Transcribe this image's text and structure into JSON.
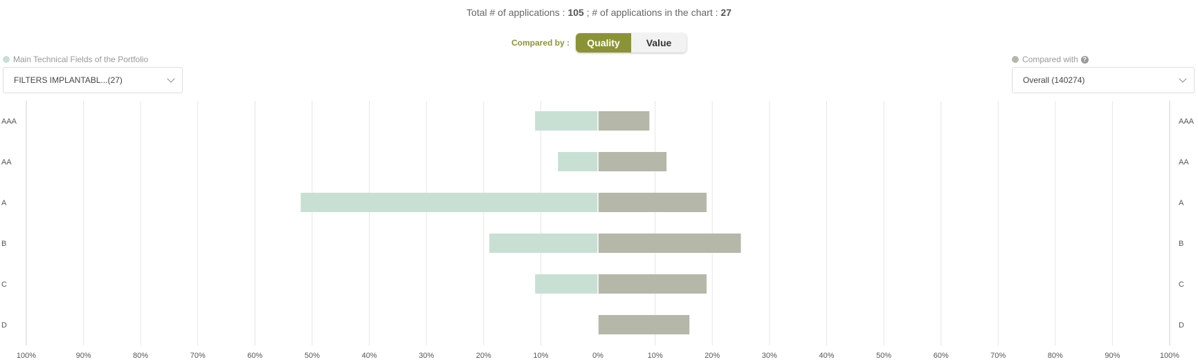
{
  "header": {
    "total_label": "Total # of applications : ",
    "total_value": "105",
    "sep": " ; # of applications in the chart : ",
    "chart_count": "27"
  },
  "compare": {
    "label": "Compared by :",
    "options": [
      "Quality",
      "Value"
    ],
    "selected": "Quality"
  },
  "left_filter": {
    "label": "Main Technical Fields of the Portfolio",
    "value": "FILTERS IMPLANTABL...(27)",
    "color": "#c8e0d4"
  },
  "right_filter": {
    "label": "Compared with",
    "value": "Overall (140274)",
    "color": "#b5b7a8"
  },
  "chart_data": {
    "type": "bar",
    "orientation": "horizontal-diverging",
    "categories": [
      "AAA",
      "AA",
      "A",
      "B",
      "C",
      "D"
    ],
    "series": [
      {
        "name": "FILTERS IMPLANTABL...(27)",
        "side": "left",
        "color": "#c8e0d4",
        "values": [
          11,
          7,
          52,
          19,
          11,
          0
        ]
      },
      {
        "name": "Overall (140274)",
        "side": "right",
        "color": "#b5b7a8",
        "values": [
          9,
          12,
          19,
          25,
          19,
          16
        ]
      }
    ],
    "xlim": [
      0,
      100
    ],
    "ticks": [
      "100%",
      "90%",
      "80%",
      "70%",
      "60%",
      "50%",
      "40%",
      "30%",
      "20%",
      "10%",
      "0%",
      "10%",
      "20%",
      "30%",
      "40%",
      "50%",
      "60%",
      "70%",
      "80%",
      "90%",
      "100%"
    ],
    "grid": true
  }
}
